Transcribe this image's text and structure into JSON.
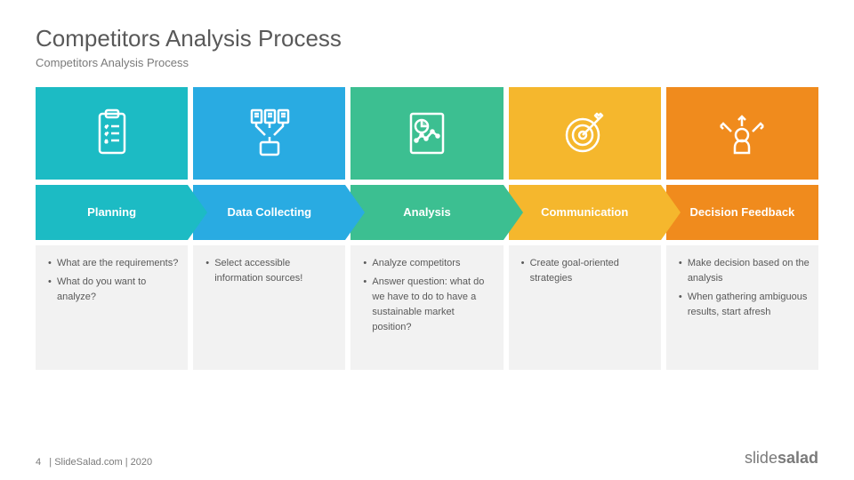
{
  "title": "Competitors Analysis Process",
  "subtitle": "Competitors Analysis Process",
  "footer_page": "4",
  "footer_text": "| SlideSalad.com | 2020",
  "logo_light": "slide",
  "logo_bold": "salad",
  "steps": [
    {
      "label": "Planning",
      "color": "#1cbbc4",
      "icon": "clipboard",
      "bullets": [
        "What are the requirements?",
        "What do you want to analyze?"
      ]
    },
    {
      "label": "Data Collecting",
      "color": "#29abe2",
      "icon": "funnel",
      "bullets": [
        "Select accessible information sources!"
      ]
    },
    {
      "label": "Analysis",
      "color": "#3cbf91",
      "icon": "report",
      "bullets": [
        "Analyze competitors",
        "Answer question: what do we have to do to have a sustainable market position?"
      ]
    },
    {
      "label": "Communication",
      "color": "#f5b72d",
      "icon": "target",
      "bullets": [
        "Create goal-oriented strategies"
      ]
    },
    {
      "label": "Decision Feedback",
      "color": "#f08b1d",
      "icon": "decision",
      "bullets": [
        "Make decision based on the analysis",
        "When gathering ambiguous results, start afresh"
      ]
    }
  ]
}
